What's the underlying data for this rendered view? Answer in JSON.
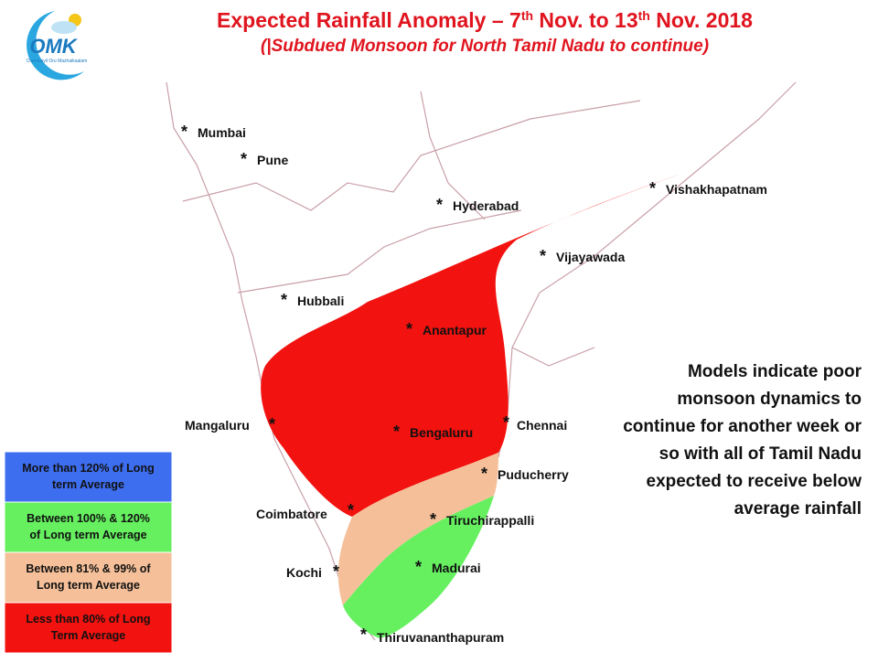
{
  "header": {
    "title_parts": [
      "Expected Rainfall Anomaly – 7",
      "th",
      " Nov. to 13",
      "th",
      " Nov. 2018"
    ],
    "subtitle": "(|Subdued Monsoon for North Tamil Nadu to continue)"
  },
  "logo": {
    "name": "OMK",
    "tagline": "Chennaiyil Oru Mazhaikaalam"
  },
  "cities": [
    "Mumbai",
    "Pune",
    "Hyderabad",
    "Vishakhapatnam",
    "Vijayawada",
    "Hubbali",
    "Anantapur",
    "Mangaluru",
    "Bengaluru",
    "Chennai",
    "Puducherry",
    "Coimbatore",
    "Tiruchirappalli",
    "Kochi",
    "Madurai",
    "Thiruvananthapuram"
  ],
  "legend": [
    {
      "lines": [
        "More than 120% of Long",
        "term Average"
      ],
      "color": "#3e6ef0"
    },
    {
      "lines": [
        "Between 100% & 120%",
        "of Long term Average"
      ],
      "color": "#66f060"
    },
    {
      "lines": [
        "Between 81% & 99% of",
        "Long term Average"
      ],
      "color": "#f5c099"
    },
    {
      "lines": [
        "Less than 80% of Long",
        "Term Average"
      ],
      "color": "#f2120f"
    }
  ],
  "note": [
    "Models indicate poor",
    "monsoon dynamics to",
    "continue for another week or",
    "so with all of Tamil Nadu",
    "expected to receive below",
    "average rainfall"
  ]
}
